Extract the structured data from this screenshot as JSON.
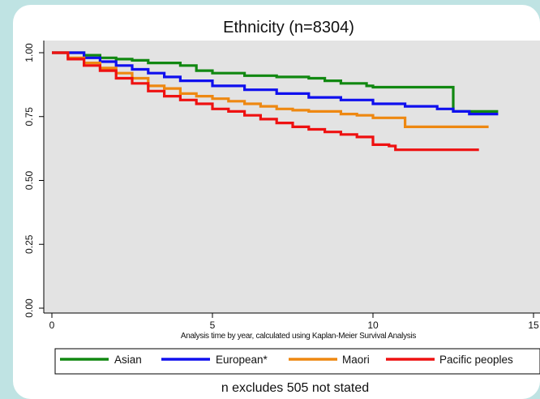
{
  "chart_data": {
    "type": "line",
    "title": "Ethnicity (n=8304)",
    "xlabel": "Analysis time by year, calculated using Kaplan-Meier Survival Analysis",
    "ylabel": "",
    "xlim": [
      0,
      15
    ],
    "ylim": [
      0,
      1
    ],
    "xticks": [
      "0",
      "5",
      "10",
      "15"
    ],
    "yticks": [
      "0.00",
      "0.25",
      "0.50",
      "0.75",
      "1.00"
    ],
    "grid": false,
    "legend_position": "bottom",
    "note": "n excludes 505 not stated",
    "series": [
      {
        "name": "Asian",
        "color": "#118811",
        "points": [
          [
            0,
            1.0
          ],
          [
            0.6,
            1.0
          ],
          [
            1,
            0.99
          ],
          [
            1.5,
            0.98
          ],
          [
            2,
            0.975
          ],
          [
            2.5,
            0.97
          ],
          [
            3,
            0.96
          ],
          [
            3.5,
            0.96
          ],
          [
            4,
            0.95
          ],
          [
            4.5,
            0.93
          ],
          [
            5,
            0.92
          ],
          [
            6,
            0.91
          ],
          [
            7,
            0.905
          ],
          [
            8,
            0.9
          ],
          [
            8.5,
            0.89
          ],
          [
            9,
            0.88
          ],
          [
            9.8,
            0.87
          ],
          [
            10,
            0.865
          ],
          [
            11,
            0.865
          ],
          [
            12,
            0.865
          ],
          [
            12.5,
            0.865
          ],
          [
            12.5,
            0.77
          ],
          [
            13.9,
            0.77
          ]
        ]
      },
      {
        "name": "European*",
        "color": "#1010ee",
        "points": [
          [
            0,
            1.0
          ],
          [
            0.4,
            1.0
          ],
          [
            1,
            0.98
          ],
          [
            1.5,
            0.965
          ],
          [
            2,
            0.95
          ],
          [
            2.5,
            0.935
          ],
          [
            3,
            0.92
          ],
          [
            3.5,
            0.905
          ],
          [
            4,
            0.89
          ],
          [
            5,
            0.87
          ],
          [
            6,
            0.855
          ],
          [
            7,
            0.84
          ],
          [
            8,
            0.825
          ],
          [
            9,
            0.815
          ],
          [
            10,
            0.8
          ],
          [
            11,
            0.79
          ],
          [
            12,
            0.78
          ],
          [
            12.5,
            0.77
          ],
          [
            13,
            0.76
          ],
          [
            13.9,
            0.76
          ]
        ]
      },
      {
        "name": "Maori",
        "color": "#ee8811",
        "points": [
          [
            0,
            1.0
          ],
          [
            0.5,
            0.98
          ],
          [
            1,
            0.96
          ],
          [
            1.5,
            0.94
          ],
          [
            2,
            0.92
          ],
          [
            2.5,
            0.9
          ],
          [
            3,
            0.87
          ],
          [
            3.5,
            0.86
          ],
          [
            4,
            0.84
          ],
          [
            4.5,
            0.83
          ],
          [
            5,
            0.82
          ],
          [
            5.5,
            0.81
          ],
          [
            6,
            0.8
          ],
          [
            6.5,
            0.79
          ],
          [
            7,
            0.78
          ],
          [
            7.5,
            0.775
          ],
          [
            8,
            0.77
          ],
          [
            9,
            0.76
          ],
          [
            9.5,
            0.755
          ],
          [
            10,
            0.745
          ],
          [
            11,
            0.74
          ],
          [
            11,
            0.71
          ],
          [
            12,
            0.71
          ],
          [
            13,
            0.71
          ],
          [
            13.6,
            0.71
          ]
        ]
      },
      {
        "name": "Pacific peoples",
        "color": "#ee1111",
        "points": [
          [
            0,
            1.0
          ],
          [
            0.5,
            0.975
          ],
          [
            1,
            0.95
          ],
          [
            1.5,
            0.93
          ],
          [
            2,
            0.9
          ],
          [
            2.5,
            0.88
          ],
          [
            3,
            0.85
          ],
          [
            3.5,
            0.83
          ],
          [
            4,
            0.815
          ],
          [
            4.5,
            0.8
          ],
          [
            5,
            0.78
          ],
          [
            5.5,
            0.77
          ],
          [
            6,
            0.755
          ],
          [
            6.5,
            0.74
          ],
          [
            7,
            0.725
          ],
          [
            7.5,
            0.71
          ],
          [
            8,
            0.7
          ],
          [
            8.5,
            0.69
          ],
          [
            9,
            0.68
          ],
          [
            9.5,
            0.67
          ],
          [
            10,
            0.64
          ],
          [
            10.5,
            0.635
          ],
          [
            10.7,
            0.62
          ],
          [
            11,
            0.62
          ],
          [
            12,
            0.62
          ],
          [
            13.3,
            0.62
          ]
        ]
      }
    ]
  }
}
